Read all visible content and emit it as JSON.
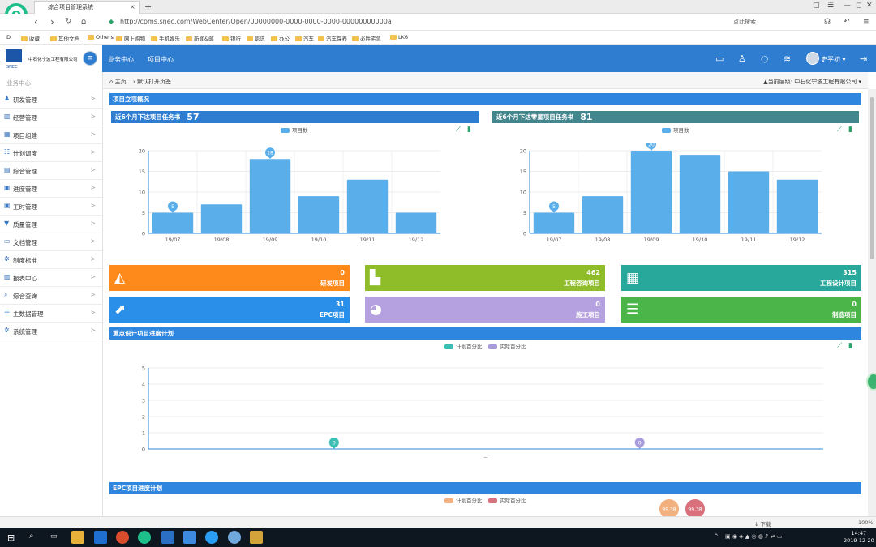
{
  "browser": {
    "tab_title": "综合项目管理系统",
    "url": "http://cpms.snec.com/WebCenter/Open/00000000-0000-0000-0000-00000000000a",
    "search_placeholder": "点此搜索",
    "bookmarks": [
      "收藏",
      "其他文档",
      "Others",
      "网上购物",
      "手机娱乐",
      "新闻&邮",
      "银行",
      "影讯",
      "办公",
      "汽车",
      "汽车保养",
      "必胜宅急",
      "LK6"
    ]
  },
  "app": {
    "company_name": "中石化宁波工程有限公司",
    "nav": [
      "业务中心",
      "项目中心"
    ],
    "user_name": "史平初"
  },
  "sidebar": {
    "title": "业务中心",
    "items": [
      {
        "label": "研发管理",
        "icon": "users-icon"
      },
      {
        "label": "经营管理",
        "icon": "bar-chart-icon"
      },
      {
        "label": "项目组建",
        "icon": "grid-icon"
      },
      {
        "label": "计划调度",
        "icon": "list-icon"
      },
      {
        "label": "综合管理",
        "icon": "table-icon"
      },
      {
        "label": "进度管理",
        "icon": "calendar-icon"
      },
      {
        "label": "工时管理",
        "icon": "calendar-icon"
      },
      {
        "label": "质量管理",
        "icon": "filter-icon"
      },
      {
        "label": "文档管理",
        "icon": "folder-icon"
      },
      {
        "label": "制度标准",
        "icon": "cogs-icon"
      },
      {
        "label": "报表中心",
        "icon": "bar-chart-icon"
      },
      {
        "label": "综合查询",
        "icon": "search-icon"
      },
      {
        "label": "主数据管理",
        "icon": "database-icon"
      },
      {
        "label": "系统管理",
        "icon": "cogs-icon"
      }
    ]
  },
  "breadcrumb": {
    "home": "主页",
    "current": "默认打开页签",
    "level_label": "当前层级:",
    "level_value": "中石化宁波工程有限公司"
  },
  "sections": {
    "overview": "项目立项概况",
    "design_progress": "重点设计项目进度计划",
    "epc_progress": "EPC项目进度计划"
  },
  "chart_data": [
    {
      "type": "bar",
      "header": "近6个月下达项目任务书",
      "header_count": "57",
      "series": [
        {
          "name": "项目数",
          "values": [
            5,
            7,
            18,
            9,
            13,
            5
          ]
        }
      ],
      "categories": [
        "19/07",
        "19/08",
        "19/09",
        "19/10",
        "19/11",
        "19/12"
      ],
      "markers": [
        {
          "category": "19/07",
          "label": "5"
        },
        {
          "category": "19/09",
          "label": "18"
        }
      ],
      "ylim": [
        0,
        20
      ],
      "yticks": [
        "0",
        "5",
        "10",
        "15",
        "20"
      ],
      "color": "#5aaeea"
    },
    {
      "type": "bar",
      "header": "近6个月下达零星项目任务书",
      "header_count": "81",
      "series": [
        {
          "name": "项目数",
          "values": [
            5,
            9,
            20,
            19,
            15,
            13
          ]
        }
      ],
      "categories": [
        "19/07",
        "19/08",
        "19/09",
        "19/10",
        "19/11",
        "19/12"
      ],
      "markers": [
        {
          "category": "19/07",
          "label": "5"
        },
        {
          "category": "19/09",
          "label": "20"
        }
      ],
      "ylim": [
        0,
        20
      ],
      "yticks": [
        "0",
        "5",
        "10",
        "15",
        "20"
      ],
      "color": "#5aaeea"
    },
    {
      "type": "line",
      "series": [
        {
          "name": "计划百分比",
          "color": "#3dbeb2"
        },
        {
          "name": "实际百分比",
          "color": "#a99cdc"
        }
      ],
      "ylim": [
        0,
        5
      ],
      "yticks": [
        "0",
        "1",
        "2",
        "3",
        "4",
        "5"
      ],
      "markers": [
        {
          "label": "0",
          "color": "#3dbeb2"
        },
        {
          "label": "0",
          "color": "#a99cdc"
        }
      ],
      "xlabel": "--"
    },
    {
      "type": "line",
      "series": [
        {
          "name": "计划百分比",
          "color": "#f3b07f"
        },
        {
          "name": "实际百分比",
          "color": "#d9707b"
        }
      ],
      "markers": [
        {
          "label": "99.38",
          "color": "#f3b07f"
        },
        {
          "label": "99.38",
          "color": "#d9707b"
        }
      ]
    }
  ],
  "tiles": [
    {
      "value": "0",
      "label": "研发项目",
      "color": "#fe8a1c"
    },
    {
      "value": "462",
      "label": "工程咨询项目",
      "color": "#8fbd2a"
    },
    {
      "value": "315",
      "label": "工程设计项目",
      "color": "#27a89a"
    },
    {
      "value": "31",
      "label": "EPC项目",
      "color": "#2a8fe8"
    },
    {
      "value": "0",
      "label": "施工项目",
      "color": "#b6a1e0"
    },
    {
      "value": "0",
      "label": "制造项目",
      "color": "#4cb54a"
    }
  ],
  "statusbar": {
    "download": "下载",
    "zoom": "100%"
  },
  "taskbar": {
    "time": "14:47",
    "date": "2019-12-20"
  }
}
